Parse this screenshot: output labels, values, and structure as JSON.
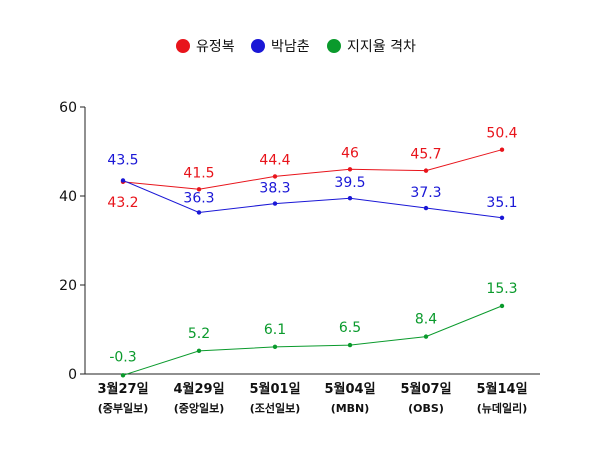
{
  "chart_data": {
    "type": "line",
    "categories": [
      "3월27일",
      "4월29일",
      "5월01일",
      "5월04일",
      "5월07일",
      "5월14일"
    ],
    "sources": [
      "(중부일보)",
      "(중앙일보)",
      "(조선일보)",
      "(MBN)",
      "(OBS)",
      "(뉴데일리)"
    ],
    "series": [
      {
        "name": "유정복",
        "color": "#e8141b",
        "values": [
          43.2,
          41.5,
          44.4,
          46,
          45.7,
          50.4
        ],
        "labels": [
          "43.2",
          "41.5",
          "44.4",
          "46",
          "45.7",
          "50.4"
        ]
      },
      {
        "name": "박남춘",
        "color": "#1a17d6",
        "values": [
          43.5,
          36.3,
          38.3,
          39.5,
          37.3,
          35.1
        ],
        "labels": [
          "43.5",
          "36.3",
          "38.3",
          "39.5",
          "37.3",
          "35.1"
        ]
      },
      {
        "name": "지지율 격차",
        "color": "#0a9a2c",
        "values": [
          -0.3,
          5.2,
          6.1,
          6.5,
          8.4,
          15.3
        ],
        "labels": [
          "-0.3",
          "5.2",
          "6.1",
          "6.5",
          "8.4",
          "15.3"
        ]
      }
    ],
    "y_ticks": [
      "0",
      "20",
      "40",
      "60"
    ],
    "ylim": [
      0,
      60
    ],
    "grid": false,
    "legend_position": "top-center"
  }
}
